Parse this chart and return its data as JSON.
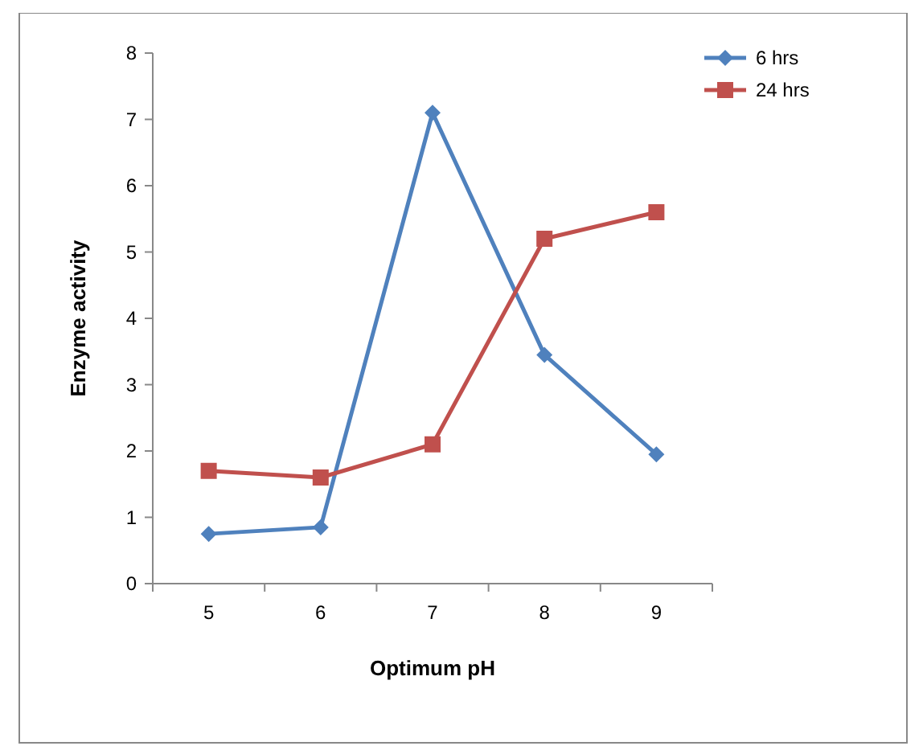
{
  "chart_data": {
    "type": "line",
    "xlabel": "Optimum pH",
    "ylabel": "Enzyme activity",
    "categories": [
      "5",
      "6",
      "7",
      "8",
      "9"
    ],
    "ylim": [
      0,
      8
    ],
    "yticks": [
      0,
      1,
      2,
      3,
      4,
      5,
      6,
      7,
      8
    ],
    "grid": false,
    "legend": "top right",
    "series": [
      {
        "name": "6 hrs",
        "color": "#4f81bd",
        "marker": "diamond",
        "values": [
          0.75,
          0.85,
          7.1,
          3.45,
          1.95
        ]
      },
      {
        "name": "24 hrs",
        "color": "#c0504d",
        "marker": "square",
        "values": [
          1.7,
          1.6,
          2.1,
          5.2,
          5.6
        ]
      }
    ]
  }
}
